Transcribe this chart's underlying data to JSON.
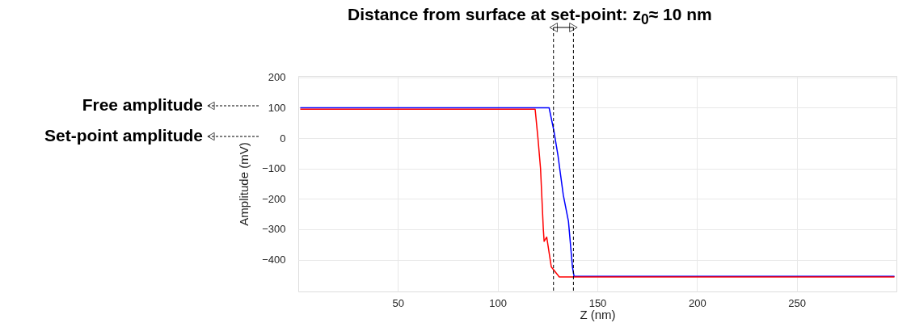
{
  "chart_data": {
    "type": "line",
    "title": "Distance from surface at set-point: z$_{0}$≈ 10 nm",
    "xlabel": "Z (nm)",
    "ylabel": "Amplitude (mV)",
    "xlim": [
      0,
      300
    ],
    "xticks": [
      50,
      100,
      150,
      200,
      250
    ],
    "ylim": [
      -505,
      205
    ],
    "yticks": [
      -400,
      -300,
      -200,
      -100,
      0,
      100,
      200
    ],
    "grid": true,
    "series": [
      {
        "color": "#0000ff",
        "x": [
          1,
          50,
          100,
          125.8,
          128.2,
          130.2,
          132.9,
          135.5,
          137.5,
          138.3,
          200,
          299
        ],
        "values": [
          100,
          100,
          100,
          100,
          24,
          -55,
          -187,
          -274,
          -424,
          -455,
          -455,
          -455
        ]
      },
      {
        "color": "#ff0000",
        "x": [
          1,
          20,
          118.8,
          120.2,
          121.5,
          122.2,
          122.9,
          123.3,
          124.6,
          126.9,
          130.9,
          200,
          299
        ],
        "values": [
          95,
          95,
          95,
          0,
          -100,
          -200,
          -300,
          -340,
          -326,
          -424,
          -457,
          -457,
          -457
        ]
      }
    ],
    "ref_lines": [
      {
        "axis": "x",
        "value": 128,
        "color": "#000000",
        "line_style": "dashed"
      },
      {
        "axis": "x",
        "value": 138,
        "color": "#000000",
        "line_style": "dashed"
      }
    ],
    "annotations": [
      "Free amplitude",
      "Set-point amplitude"
    ]
  }
}
